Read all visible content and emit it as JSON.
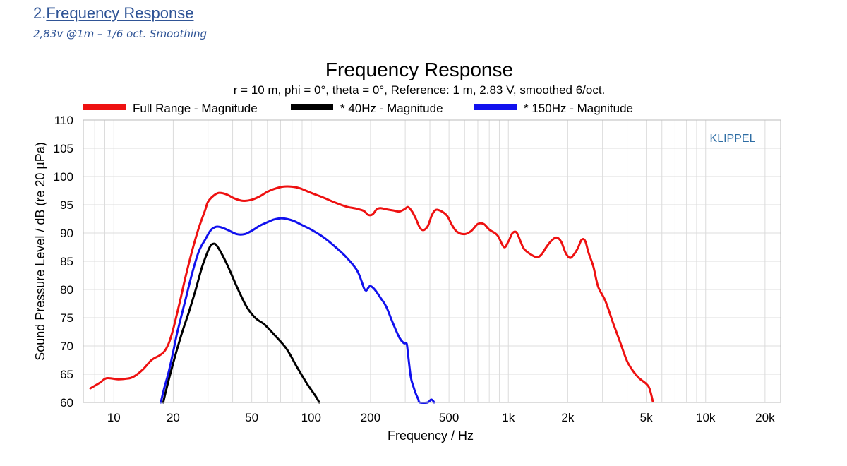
{
  "section": {
    "number": "2.",
    "title": "Frequency Response",
    "subtitle": "2,83v @1m – 1/6 oct. Smoothing"
  },
  "chart_data": {
    "type": "line",
    "title": "Frequency Response",
    "subtitle": "r = 10 m, phi = 0°, theta = 0°, Reference: 1 m, 2.83 V, smoothed 6/oct.",
    "xlabel": "Frequency / Hz",
    "ylabel": "Sound Pressure Level / dB (re 20 µPa)",
    "x_scale": "log",
    "xlim": [
      7,
      24000
    ],
    "ylim": [
      60,
      110
    ],
    "xticks": [
      10,
      20,
      50,
      100,
      200,
      500,
      1000,
      2000,
      5000,
      10000,
      20000
    ],
    "xtick_labels": [
      "10",
      "20",
      "50",
      "100",
      "200",
      "500",
      "1k",
      "2k",
      "5k",
      "10k",
      "20k"
    ],
    "yticks": [
      60,
      65,
      70,
      75,
      80,
      85,
      90,
      95,
      100,
      105,
      110
    ],
    "ytick_labels": [
      "60",
      "65",
      "70",
      "75",
      "80",
      "85",
      "90",
      "95",
      "100",
      "105",
      "110"
    ],
    "grid": true,
    "legend_position": "top",
    "watermark": "KLIPPEL",
    "colors": {
      "full": "#ee1111",
      "s40": "#000000",
      "s150": "#1111ee",
      "watermark": "#2e6da4"
    },
    "series": [
      {
        "name": "Full Range - Magnitude",
        "color": "#ee1111",
        "points": [
          [
            7.6,
            62.5
          ],
          [
            8.5,
            63.5
          ],
          [
            9.2,
            64.3
          ],
          [
            10.5,
            64.1
          ],
          [
            11.5,
            64.2
          ],
          [
            12.5,
            64.5
          ],
          [
            14,
            65.8
          ],
          [
            15.5,
            67.5
          ],
          [
            17,
            68.3
          ],
          [
            18,
            69
          ],
          [
            19,
            70.5
          ],
          [
            20,
            73
          ],
          [
            21,
            76
          ],
          [
            22,
            79
          ],
          [
            23,
            82
          ],
          [
            25,
            87
          ],
          [
            27,
            91
          ],
          [
            29,
            94
          ],
          [
            30,
            95.5
          ],
          [
            32,
            96.6
          ],
          [
            34,
            97.1
          ],
          [
            36,
            97
          ],
          [
            38,
            96.7
          ],
          [
            41,
            96.1
          ],
          [
            45,
            95.7
          ],
          [
            50,
            95.9
          ],
          [
            55,
            96.5
          ],
          [
            60,
            97.3
          ],
          [
            65,
            97.8
          ],
          [
            72,
            98.2
          ],
          [
            80,
            98.2
          ],
          [
            88,
            97.9
          ],
          [
            100,
            97.1
          ],
          [
            115,
            96.3
          ],
          [
            130,
            95.5
          ],
          [
            150,
            94.7
          ],
          [
            170,
            94.3
          ],
          [
            185,
            93.9
          ],
          [
            195,
            93.2
          ],
          [
            205,
            93.3
          ],
          [
            215,
            94.2
          ],
          [
            225,
            94.4
          ],
          [
            240,
            94.2
          ],
          [
            260,
            94
          ],
          [
            280,
            93.8
          ],
          [
            300,
            94.3
          ],
          [
            310,
            94.6
          ],
          [
            325,
            93.8
          ],
          [
            340,
            92.5
          ],
          [
            355,
            91
          ],
          [
            370,
            90.5
          ],
          [
            390,
            91.2
          ],
          [
            410,
            93.2
          ],
          [
            430,
            94.1
          ],
          [
            460,
            93.8
          ],
          [
            490,
            93
          ],
          [
            520,
            91.3
          ],
          [
            550,
            90.2
          ],
          [
            600,
            89.8
          ],
          [
            650,
            90.4
          ],
          [
            700,
            91.6
          ],
          [
            750,
            91.6
          ],
          [
            800,
            90.6
          ],
          [
            880,
            89.6
          ],
          [
            950,
            87.5
          ],
          [
            1000,
            88.5
          ],
          [
            1050,
            90
          ],
          [
            1100,
            90.1
          ],
          [
            1150,
            88.6
          ],
          [
            1200,
            87.2
          ],
          [
            1300,
            86.2
          ],
          [
            1400,
            85.7
          ],
          [
            1480,
            86.3
          ],
          [
            1550,
            87.4
          ],
          [
            1650,
            88.6
          ],
          [
            1750,
            89.2
          ],
          [
            1850,
            88.5
          ],
          [
            1950,
            86.5
          ],
          [
            2050,
            85.6
          ],
          [
            2150,
            86.2
          ],
          [
            2250,
            87.3
          ],
          [
            2350,
            88.8
          ],
          [
            2450,
            88.6
          ],
          [
            2550,
            86.5
          ],
          [
            2700,
            84
          ],
          [
            2850,
            80.5
          ],
          [
            3100,
            78
          ],
          [
            3400,
            74
          ],
          [
            3700,
            70.5
          ],
          [
            4000,
            67.3
          ],
          [
            4300,
            65.5
          ],
          [
            4600,
            64.3
          ],
          [
            5000,
            63.3
          ],
          [
            5200,
            62.4
          ],
          [
            5400,
            60.2
          ]
        ]
      },
      {
        "name": "* 40Hz - Magnitude",
        "color": "#000000",
        "points": [
          [
            17.8,
            60
          ],
          [
            18.5,
            62.5
          ],
          [
            20,
            67
          ],
          [
            22,
            72
          ],
          [
            24,
            76
          ],
          [
            26,
            80
          ],
          [
            28,
            84
          ],
          [
            30,
            86.8
          ],
          [
            31,
            87.8
          ],
          [
            32,
            88.1
          ],
          [
            33,
            87.9
          ],
          [
            35,
            86.5
          ],
          [
            38,
            84
          ],
          [
            42,
            80.5
          ],
          [
            47,
            77
          ],
          [
            52,
            75
          ],
          [
            58,
            73.8
          ],
          [
            65,
            72
          ],
          [
            75,
            69.5
          ],
          [
            85,
            66.2
          ],
          [
            95,
            63.4
          ],
          [
            105,
            61.2
          ],
          [
            110,
            60
          ]
        ]
      },
      {
        "name": "* 150Hz - Magnitude",
        "color": "#1111ee",
        "points": [
          [
            17.3,
            60
          ],
          [
            18,
            62.5
          ],
          [
            19,
            65.5
          ],
          [
            20,
            69
          ],
          [
            21,
            72.5
          ],
          [
            23,
            78
          ],
          [
            25,
            83
          ],
          [
            27,
            86.8
          ],
          [
            29,
            88.8
          ],
          [
            31,
            90.5
          ],
          [
            33,
            91.1
          ],
          [
            35,
            91
          ],
          [
            38,
            90.5
          ],
          [
            42,
            89.8
          ],
          [
            46,
            89.8
          ],
          [
            50,
            90.4
          ],
          [
            55,
            91.3
          ],
          [
            60,
            91.9
          ],
          [
            65,
            92.4
          ],
          [
            70,
            92.6
          ],
          [
            75,
            92.5
          ],
          [
            82,
            92.1
          ],
          [
            90,
            91.4
          ],
          [
            100,
            90.6
          ],
          [
            115,
            89.3
          ],
          [
            130,
            87.8
          ],
          [
            150,
            85.8
          ],
          [
            170,
            83.5
          ],
          [
            180,
            81.5
          ],
          [
            185,
            80.3
          ],
          [
            190,
            79.8
          ],
          [
            195,
            80.3
          ],
          [
            200,
            80.6
          ],
          [
            210,
            80
          ],
          [
            225,
            78.5
          ],
          [
            240,
            77
          ],
          [
            260,
            74
          ],
          [
            280,
            71.5
          ],
          [
            295,
            70.5
          ],
          [
            305,
            70.4
          ],
          [
            310,
            68.5
          ],
          [
            320,
            64.5
          ],
          [
            330,
            62.8
          ],
          [
            340,
            61.5
          ],
          [
            350,
            60.5
          ],
          [
            355,
            60
          ],
          [
            390,
            60
          ],
          [
            405,
            60.5
          ],
          [
            415,
            60.3
          ],
          [
            420,
            60
          ]
        ]
      }
    ]
  }
}
